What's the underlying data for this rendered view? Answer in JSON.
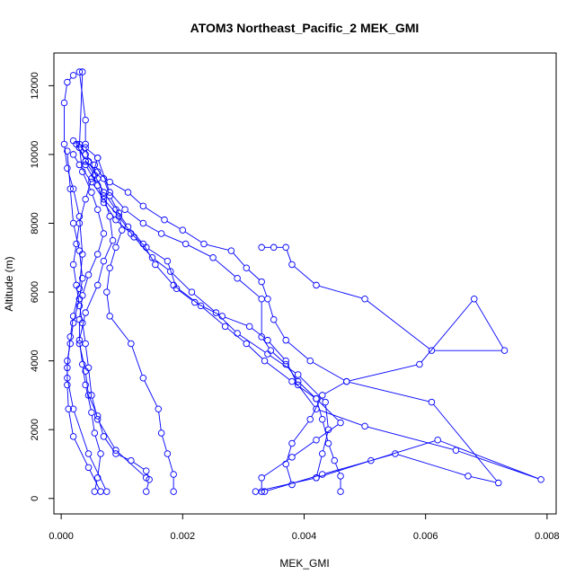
{
  "chart_data": {
    "type": "line",
    "title": "ATOM3 Northeast_Pacific_2 MEK_GMI",
    "xlabel": "MEK_GMI",
    "ylabel": "Altitude (m)",
    "xlim": [
      -0.00012,
      0.00815
    ],
    "ylim": [
      -450,
      12950
    ],
    "xticks": [
      0,
      0.002,
      0.004,
      0.006,
      0.008
    ],
    "xtick_labels": [
      "0.000",
      "0.002",
      "0.004",
      "0.006",
      "0.008"
    ],
    "yticks": [
      0,
      2000,
      4000,
      6000,
      8000,
      10000,
      12000
    ],
    "ytick_labels": [
      "0",
      "2000",
      "4000",
      "6000",
      "8000",
      "10000",
      "12000"
    ],
    "grid": false,
    "color": "#0000ff",
    "profiles": [
      {
        "x": [
          0.00055,
          0.0006,
          0.00065,
          0.00055,
          0.0005,
          0.0004,
          0.00035,
          0.0003,
          0.0004,
          0.0006,
          0.0007,
          0.00085,
          0.0008,
          0.0007,
          0.0006,
          0.00045,
          0.0004,
          0.0004,
          0.0003
        ],
        "y": [
          200,
          600,
          1300,
          1900,
          2500,
          3300,
          3900,
          4600,
          5400,
          6200,
          6900,
          7500,
          8200,
          8800,
          9300,
          9800,
          10300,
          11000,
          12400
        ]
      },
      {
        "x": [
          0.0014,
          0.00145,
          0.0014,
          0.00115,
          0.0009,
          0.0007,
          0.0006,
          0.00045,
          0.0004,
          0.0003,
          0.0003,
          0.00035,
          0.00045,
          0.0006,
          0.0007,
          0.0006,
          0.0005,
          0.00035,
          0.0003,
          0.00035
        ],
        "y": [
          200,
          550,
          800,
          1100,
          1300,
          1800,
          2400,
          3000,
          3700,
          4500,
          5200,
          5900,
          6500,
          7100,
          7700,
          8400,
          8900,
          9500,
          10200,
          12400
        ]
      },
      {
        "x": [
          0.00185,
          0.00185,
          0.00175,
          0.00165,
          0.0016,
          0.00135,
          0.00115,
          0.0008,
          0.00075,
          0.0008,
          0.0009,
          0.001,
          0.00095,
          0.0008,
          0.0007,
          0.00055,
          0.0004,
          0.0003
        ],
        "y": [
          200,
          700,
          1300,
          1900,
          2600,
          3500,
          4500,
          5300,
          6000,
          6700,
          7300,
          7800,
          8300,
          8800,
          9300,
          9700,
          10000,
          10300
        ]
      },
      {
        "x": [
          0.0033,
          0.0033,
          0.0038,
          0.0042,
          0.0046,
          0.0042,
          0.0038,
          0.00335,
          0.00305,
          0.0027,
          0.0023,
          0.00185,
          0.00155,
          0.00135,
          0.0011,
          0.0009,
          0.0007,
          0.00055,
          0.0004,
          0.00025
        ],
        "y": [
          200,
          600,
          1200,
          1700,
          2200,
          2900,
          3400,
          4000,
          4500,
          5000,
          5600,
          6200,
          6800,
          7400,
          7900,
          8400,
          8900,
          9400,
          9800,
          10300
        ]
      },
      {
        "x": [
          0.0046,
          0.0046,
          0.0045,
          0.0044,
          0.0043,
          0.0042,
          0.0039,
          0.0037,
          0.00345,
          0.0033,
          0.0033,
          0.0029,
          0.0025,
          0.00205,
          0.00165,
          0.00135,
          0.00105,
          0.0008,
          0.0006
        ],
        "y": [
          200,
          650,
          1100,
          1600,
          2300,
          2900,
          3400,
          3900,
          4300,
          4700,
          5800,
          6400,
          7000,
          7400,
          7700,
          8000,
          8400,
          8900,
          9900
        ]
      },
      {
        "x": [
          0.0032,
          0.0042,
          0.0051,
          0.0062,
          0.0079,
          0.0065,
          0.005,
          0.0042,
          0.0039,
          0.0037,
          0.0034,
          0.0031,
          0.00265,
          0.0022,
          0.0019,
          0.00175,
          0.0014,
          0.00115,
          0.0009,
          0.0007,
          0.0006,
          0.0004
        ],
        "y": [
          200,
          600,
          1100,
          1700,
          550,
          1400,
          2100,
          2600,
          3300,
          4000,
          4600,
          5000,
          5300,
          5700,
          6100,
          6900,
          7300,
          7700,
          8100,
          8600,
          9100,
          9700
        ]
      },
      {
        "x": [
          0.00335,
          0.0043,
          0.0055,
          0.0067,
          0.0072,
          0.0061,
          0.0047,
          0.0041,
          0.0037,
          0.0035,
          0.0034,
          0.0033,
          0.00305,
          0.0028,
          0.00235,
          0.002,
          0.0017,
          0.00135,
          0.0011,
          0.0008,
          0.0006,
          0.0004,
          0.0003
        ],
        "y": [
          200,
          700,
          1300,
          650,
          450,
          2800,
          3400,
          4000,
          4600,
          5200,
          5800,
          6300,
          6700,
          7200,
          7400,
          7800,
          8100,
          8500,
          8900,
          9200,
          9500,
          9800,
          10200
        ]
      },
      {
        "x": [
          0.0042,
          0.0043,
          0.0044,
          0.00435,
          0.0039,
          0.0034,
          0.0029,
          0.00255,
          0.00215,
          0.0018,
          0.0015,
          0.0012,
          0.00095,
          0.0007,
          0.0005,
          0.0003,
          0.0002
        ],
        "y": [
          600,
          1300,
          2000,
          2800,
          3600,
          4200,
          4800,
          5400,
          6000,
          6600,
          7000,
          7600,
          8200,
          8700,
          9200,
          9700,
          10000
        ]
      },
      {
        "x": [
          0.0038,
          0.0037,
          0.0038,
          0.0041,
          0.0043,
          0.0047,
          0.0059,
          0.0068,
          0.0073,
          0.0061,
          0.005,
          0.0042,
          0.0038,
          0.0037,
          0.0035,
          0.0033
        ],
        "y": [
          400,
          1000,
          1600,
          2300,
          3000,
          3400,
          3900,
          5800,
          4300,
          4300,
          5800,
          6200,
          6800,
          7300,
          7300,
          7300
        ]
      },
      {
        "x": [
          0.00075,
          0.00045,
          0.0002,
          0.0001,
          0.0001,
          0.00015,
          0.0002,
          0.0003,
          0.00035,
          0.0003,
          0.0002,
          0.0001,
          5e-05,
          5e-05,
          0.0001,
          0.0002
        ],
        "y": [
          200,
          1300,
          2600,
          3500,
          3800,
          4700,
          5300,
          6100,
          7100,
          8200,
          9000,
          9600,
          10300,
          11500,
          12100,
          12300
        ]
      },
      {
        "x": [
          0.00065,
          0.00045,
          0.0002,
          0.00012,
          0.0001,
          0.0001,
          0.00015,
          0.0002,
          0.0003,
          0.00035,
          0.0003,
          0.0002,
          0.00015,
          0.0001
        ],
        "y": [
          200,
          900,
          1800,
          2600,
          3300,
          4000,
          4500,
          5100,
          5800,
          6400,
          7200,
          8000,
          9000,
          10100
        ]
      },
      {
        "x": [
          0.0014,
          0.0009,
          0.0006,
          0.0005,
          0.00045,
          0.0004,
          0.00035,
          0.0003,
          0.00025,
          0.0002,
          0.00025,
          0.0003,
          0.0004,
          0.0005,
          0.0006,
          0.0004,
          0.0002
        ],
        "y": [
          600,
          1400,
          2300,
          3000,
          3800,
          4500,
          5100,
          5600,
          6200,
          6800,
          7400,
          8000,
          8700,
          9300,
          9900,
          10200,
          10400
        ]
      }
    ]
  }
}
